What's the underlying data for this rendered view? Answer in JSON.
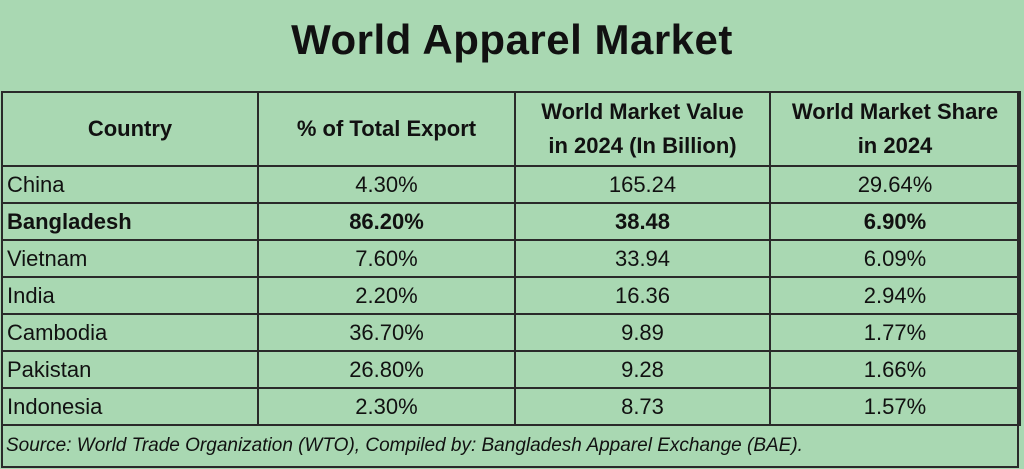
{
  "title": "World Apparel Market",
  "chart_data": {
    "type": "table",
    "title": "World Apparel Market",
    "columns": [
      "Country",
      "% of Total Export",
      "World Market Value in 2024 (In Billion)",
      "World Market Share in 2024"
    ],
    "header_lines": [
      [
        "Country"
      ],
      [
        "% of Total Export"
      ],
      [
        "World Market Value",
        "in 2024 (In Billion)"
      ],
      [
        "World Market Share",
        "in 2024"
      ]
    ],
    "rows": [
      {
        "country": "China",
        "pct_export": "4.30%",
        "value": "165.24",
        "share": "29.64%",
        "highlight": false
      },
      {
        "country": "Bangladesh",
        "pct_export": "86.20%",
        "value": "38.48",
        "share": "6.90%",
        "highlight": true
      },
      {
        "country": "Vietnam",
        "pct_export": "7.60%",
        "value": "33.94",
        "share": "6.09%",
        "highlight": false
      },
      {
        "country": "India",
        "pct_export": "2.20%",
        "value": "16.36",
        "share": "2.94%",
        "highlight": false
      },
      {
        "country": "Cambodia",
        "pct_export": "36.70%",
        "value": "9.89",
        "share": "1.77%",
        "highlight": false
      },
      {
        "country": "Pakistan",
        "pct_export": "26.80%",
        "value": "9.28",
        "share": "1.66%",
        "highlight": false
      },
      {
        "country": "Indonesia",
        "pct_export": "2.30%",
        "value": "8.73",
        "share": "1.57%",
        "highlight": false
      }
    ],
    "source": "Source: World Trade Organization (WTO), Compiled by: Bangladesh Apparel Exchange (BAE)."
  },
  "colors": {
    "background": "#a9d8b2",
    "border": "#2a2a2a",
    "text": "#111111"
  }
}
